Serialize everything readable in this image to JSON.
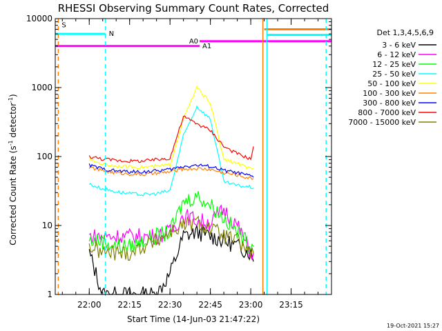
{
  "chart_data": {
    "type": "line",
    "title": "RHESSI Observing Summary Count Rates, Corrected",
    "ylabel": "Corrected Count Rate (s⁻¹ detector⁻¹)",
    "ylabel_parts": [
      "Corrected Count Rate (s",
      "-1",
      " detector",
      "-1",
      ")"
    ],
    "xlabel": "Start Time (14-Jun-03 21:47:22)",
    "y_scale": "log",
    "ylim": [
      1,
      10000
    ],
    "y_ticks": [
      {
        "value": 1,
        "label": "1"
      },
      {
        "value": 10,
        "label": "10"
      },
      {
        "value": 100,
        "label": "100"
      },
      {
        "value": 1000,
        "label": "1000"
      },
      {
        "value": 10000,
        "label": "10000"
      }
    ],
    "xlim": [
      "21:47:22",
      "23:30:00"
    ],
    "x_ticks": [
      "22:00",
      "22:15",
      "22:30",
      "22:45",
      "23:00",
      "23:15"
    ],
    "legend_title": "Det 1,3,4,5,6,9",
    "legend_position": "right",
    "timestamp": "19-Oct-2021 15:27",
    "series": [
      {
        "name": "3 - 6 keV",
        "color": "#000000",
        "points": [
          [
            "22:00",
            4
          ],
          [
            "22:05",
            1
          ],
          [
            "22:10",
            1
          ],
          [
            "22:20",
            1
          ],
          [
            "22:25",
            1
          ],
          [
            "22:30",
            2
          ],
          [
            "22:35",
            7
          ],
          [
            "22:40",
            8
          ],
          [
            "22:45",
            7
          ],
          [
            "22:50",
            6
          ],
          [
            "22:55",
            5
          ],
          [
            "23:00",
            4
          ],
          [
            "23:01",
            3
          ]
        ]
      },
      {
        "name": "6 - 12 keV",
        "color": "#ff00ff",
        "points": [
          [
            "22:00",
            7
          ],
          [
            "22:05",
            7
          ],
          [
            "22:10",
            7
          ],
          [
            "22:15",
            7
          ],
          [
            "22:20",
            7
          ],
          [
            "22:25",
            7
          ],
          [
            "22:30",
            8
          ],
          [
            "22:35",
            14
          ],
          [
            "22:40",
            12
          ],
          [
            "22:45",
            11
          ],
          [
            "22:50",
            17
          ],
          [
            "22:55",
            10
          ],
          [
            "23:00",
            4
          ],
          [
            "23:01",
            4
          ]
        ]
      },
      {
        "name": "12 - 25 keV",
        "color": "#00ff00",
        "points": [
          [
            "22:00",
            6
          ],
          [
            "22:05",
            6
          ],
          [
            "22:10",
            5
          ],
          [
            "22:15",
            5
          ],
          [
            "22:20",
            6
          ],
          [
            "22:25",
            7
          ],
          [
            "22:30",
            8
          ],
          [
            "22:35",
            22
          ],
          [
            "22:40",
            27
          ],
          [
            "22:45",
            20
          ],
          [
            "22:50",
            13
          ],
          [
            "22:55",
            8
          ],
          [
            "23:00",
            5
          ],
          [
            "23:01",
            5
          ]
        ]
      },
      {
        "name": "25 - 50 keV",
        "color": "#00ffff",
        "points": [
          [
            "22:00",
            40
          ],
          [
            "22:05",
            34
          ],
          [
            "22:10",
            31
          ],
          [
            "22:15",
            29
          ],
          [
            "22:20",
            28
          ],
          [
            "22:25",
            29
          ],
          [
            "22:30",
            32
          ],
          [
            "22:35",
            200
          ],
          [
            "22:40",
            530
          ],
          [
            "22:45",
            350
          ],
          [
            "22:50",
            43
          ],
          [
            "22:55",
            38
          ],
          [
            "23:00",
            36
          ],
          [
            "23:01",
            35
          ]
        ]
      },
      {
        "name": "50 - 100 keV",
        "color": "#ffff00",
        "points": [
          [
            "22:00",
            90
          ],
          [
            "22:05",
            78
          ],
          [
            "22:10",
            73
          ],
          [
            "22:15",
            71
          ],
          [
            "22:20",
            70
          ],
          [
            "22:25",
            72
          ],
          [
            "22:30",
            76
          ],
          [
            "22:35",
            350
          ],
          [
            "22:40",
            1000
          ],
          [
            "22:45",
            600
          ],
          [
            "22:50",
            90
          ],
          [
            "22:55",
            80
          ],
          [
            "23:00",
            65
          ],
          [
            "23:01",
            66
          ]
        ]
      },
      {
        "name": "100 - 300 keV",
        "color": "#ff8000",
        "points": [
          [
            "22:00",
            70
          ],
          [
            "22:05",
            62
          ],
          [
            "22:10",
            58
          ],
          [
            "22:15",
            56
          ],
          [
            "22:20",
            55
          ],
          [
            "22:25",
            57
          ],
          [
            "22:30",
            60
          ],
          [
            "22:35",
            66
          ],
          [
            "22:40",
            67
          ],
          [
            "22:45",
            65
          ],
          [
            "22:50",
            58
          ],
          [
            "22:55",
            54
          ],
          [
            "23:00",
            48
          ],
          [
            "23:01",
            48
          ]
        ]
      },
      {
        "name": "300 - 800 keV",
        "color": "#0000ff",
        "points": [
          [
            "22:00",
            75
          ],
          [
            "22:05",
            66
          ],
          [
            "22:10",
            62
          ],
          [
            "22:15",
            60
          ],
          [
            "22:20",
            60
          ],
          [
            "22:25",
            62
          ],
          [
            "22:30",
            65
          ],
          [
            "22:35",
            72
          ],
          [
            "22:40",
            75
          ],
          [
            "22:45",
            72
          ],
          [
            "22:50",
            63
          ],
          [
            "22:55",
            58
          ],
          [
            "23:00",
            52
          ],
          [
            "23:01",
            50
          ]
        ]
      },
      {
        "name": "800 - 7000 keV",
        "color": "#ff0000",
        "points": [
          [
            "22:00",
            100
          ],
          [
            "22:05",
            92
          ],
          [
            "22:10",
            88
          ],
          [
            "22:15",
            86
          ],
          [
            "22:20",
            86
          ],
          [
            "22:25",
            90
          ],
          [
            "22:30",
            95
          ],
          [
            "22:35",
            380
          ],
          [
            "22:40",
            300
          ],
          [
            "22:45",
            240
          ],
          [
            "22:50",
            140
          ],
          [
            "22:55",
            110
          ],
          [
            "23:00",
            92
          ],
          [
            "23:01",
            140
          ]
        ]
      },
      {
        "name": "7000 - 15000 keV",
        "color": "#808000",
        "points": [
          [
            "22:00",
            5
          ],
          [
            "22:05",
            4
          ],
          [
            "22:10",
            4
          ],
          [
            "22:15",
            4
          ],
          [
            "22:20",
            5
          ],
          [
            "22:25",
            6
          ],
          [
            "22:30",
            8
          ],
          [
            "22:35",
            10
          ],
          [
            "22:40",
            11
          ],
          [
            "22:45",
            9
          ],
          [
            "22:50",
            7
          ],
          [
            "22:55",
            6
          ],
          [
            "23:00",
            4
          ],
          [
            "23:01",
            4
          ]
        ]
      }
    ],
    "markers": [
      {
        "label": "S",
        "color": "#ff8000",
        "style": "dashed",
        "time": "21:48:30",
        "y": 8000
      },
      {
        "label": "N",
        "color": "#00ffff",
        "style": "dashed",
        "time": "22:06:00",
        "y": 6000
      },
      {
        "label": "",
        "color": "#ff8000",
        "style": "solid",
        "time": "23:04:30"
      },
      {
        "label": "",
        "color": "#00ffff",
        "style": "solid",
        "time": "23:06:00"
      },
      {
        "label": "",
        "color": "#00ffff",
        "style": "dashed",
        "time": "23:28:00"
      }
    ],
    "bands": [
      {
        "label": "",
        "color": "#00ffff",
        "y": 6000,
        "from": "21:47:22",
        "to": "22:06:00"
      },
      {
        "label": "",
        "color": "#ff8000",
        "y": 7000,
        "from": "23:05:00",
        "to": "23:30:00"
      },
      {
        "label": "",
        "color": "#00ffff",
        "y": 5800,
        "from": "23:06:00",
        "to": "23:30:00"
      },
      {
        "label": "A0",
        "color": "#ff00ff",
        "y": 4700,
        "from": "22:41:00",
        "to": "23:30:00"
      },
      {
        "label": "A1",
        "color": "#ff00ff",
        "y": 4000,
        "from": "21:47:22",
        "to": "22:41:00"
      }
    ]
  }
}
